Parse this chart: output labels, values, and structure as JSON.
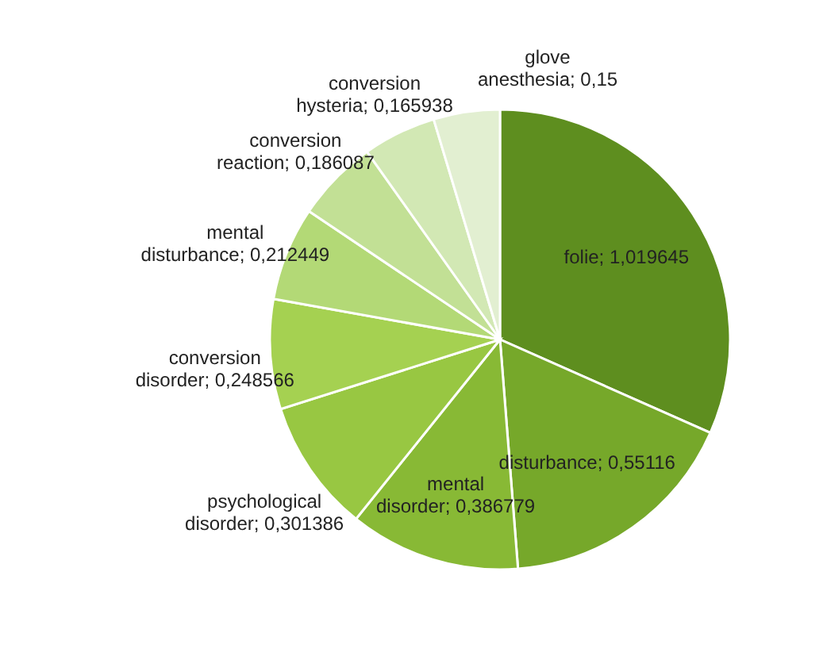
{
  "chart_data": {
    "type": "pie",
    "categories": [
      "folie",
      "disturbance",
      "mental disorder",
      "psychological disorder",
      "conversion disorder",
      "mental disturbance",
      "conversion reaction",
      "conversion hysteria",
      "glove anesthesia"
    ],
    "values": [
      1.019645,
      0.55116,
      0.386779,
      0.301386,
      0.248566,
      0.212449,
      0.186087,
      0.165938,
      0.15
    ],
    "value_labels": [
      "1,019645",
      "0,55116",
      "0,386779",
      "0,301386",
      "0,248566",
      "0,212449",
      "0,186087",
      "0,165938",
      "0,15"
    ],
    "colors": [
      "#5e8e1f",
      "#76a82a",
      "#88b935",
      "#98c742",
      "#a5d151",
      "#b3d976",
      "#c2e095",
      "#d2e8b4",
      "#e2efd1"
    ]
  }
}
